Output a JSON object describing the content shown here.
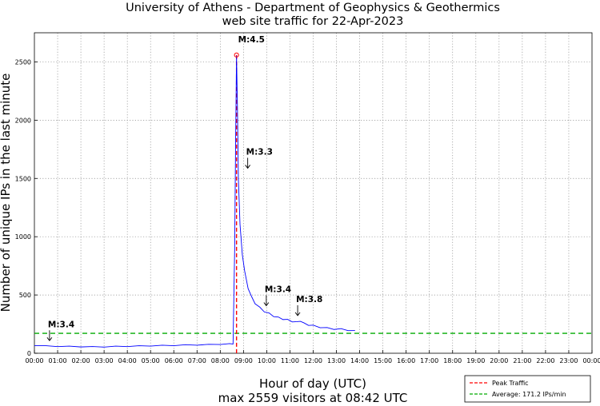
{
  "chart_data": {
    "type": "line",
    "title": "University of Athens - Department of Geophysics & Geothermics",
    "subtitle": "web site traffic for 22-Apr-2023",
    "xlabel": "Hour of day (UTC)",
    "xlabel_sub": "max 2559 visitors at 08:42 UTC",
    "ylabel": "Number of unique IPs in the last minute",
    "xlim": [
      0,
      24
    ],
    "ylim": [
      0,
      2750
    ],
    "x_ticks": [
      "00:00",
      "01:00",
      "02:00",
      "03:00",
      "04:00",
      "05:00",
      "06:00",
      "07:00",
      "08:00",
      "09:00",
      "10:00",
      "11:00",
      "12:00",
      "13:00",
      "14:00",
      "15:00",
      "16:00",
      "17:00",
      "18:00",
      "19:00",
      "20:00",
      "21:00",
      "22:00",
      "23:00",
      "00:00"
    ],
    "y_ticks": [
      0,
      500,
      1000,
      1500,
      2000,
      2500
    ],
    "grid": true,
    "legend_position": "bottom-right",
    "peak": {
      "x": 8.7,
      "y": 2559
    },
    "average": 171.2,
    "series": [
      {
        "color": "#0000ff",
        "x": [
          0.0,
          0.5,
          1.0,
          1.5,
          2.0,
          2.5,
          3.0,
          3.5,
          4.0,
          4.5,
          5.0,
          5.5,
          6.0,
          6.5,
          7.0,
          7.5,
          8.0,
          8.4,
          8.55,
          8.58,
          8.62,
          8.66,
          8.7,
          8.74,
          8.78,
          8.85,
          8.95,
          9.05,
          9.2,
          9.35,
          9.5,
          9.7,
          9.9,
          10.1,
          10.3,
          10.5,
          10.7,
          10.9,
          11.1,
          11.3,
          11.45,
          11.6,
          11.8,
          12.0,
          12.3,
          12.6,
          12.9,
          13.2,
          13.5,
          13.8
        ],
        "y": [
          65,
          62,
          60,
          58,
          57,
          55,
          56,
          58,
          60,
          62,
          64,
          66,
          68,
          70,
          72,
          74,
          78,
          80,
          82,
          420,
          900,
          1800,
          2559,
          2100,
          1500,
          1100,
          850,
          700,
          560,
          480,
          430,
          390,
          360,
          340,
          320,
          305,
          295,
          285,
          275,
          265,
          280,
          255,
          245,
          235,
          225,
          215,
          210,
          205,
          200,
          195
        ]
      }
    ],
    "annotations": [
      {
        "label": "M:3.4",
        "x": 0.72,
        "y": 60
      },
      {
        "label": "M:4.5",
        "x": 8.7,
        "y": 2559
      },
      {
        "label": "M:3.3",
        "x": 9.25,
        "y": 1540
      },
      {
        "label": "M:3.4",
        "x": 10.05,
        "y": 360
      },
      {
        "label": "M:3.8",
        "x": 11.4,
        "y": 275
      }
    ],
    "legend": [
      {
        "label": "Peak Traffic",
        "color": "#ff0000",
        "style": "dashed"
      },
      {
        "label": "Average: 171.2 IPs/min",
        "color": "#00aa00",
        "style": "dashed"
      }
    ]
  }
}
